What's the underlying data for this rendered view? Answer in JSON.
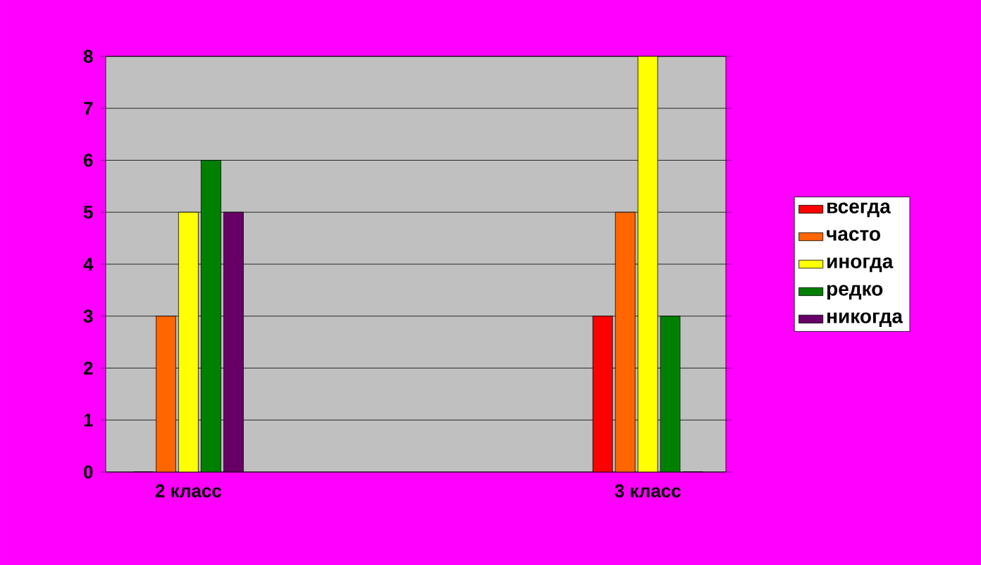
{
  "chart_data": {
    "type": "bar",
    "categories": [
      "2 класс",
      "3 класс"
    ],
    "series": [
      {
        "name": "всегда",
        "color": "#ff0000",
        "values": [
          0,
          3
        ]
      },
      {
        "name": "часто",
        "color": "#ff6600",
        "values": [
          3,
          5
        ]
      },
      {
        "name": "иногда",
        "color": "#ffff00",
        "values": [
          5,
          8
        ]
      },
      {
        "name": "редко",
        "color": "#008000",
        "values": [
          6,
          3
        ]
      },
      {
        "name": "никогда",
        "color": "#660066",
        "values": [
          5,
          0
        ]
      }
    ],
    "ylim": [
      0,
      8
    ],
    "yticks": [
      0,
      1,
      2,
      3,
      4,
      5,
      6,
      7,
      8
    ],
    "grid": "y",
    "legend": "right"
  }
}
